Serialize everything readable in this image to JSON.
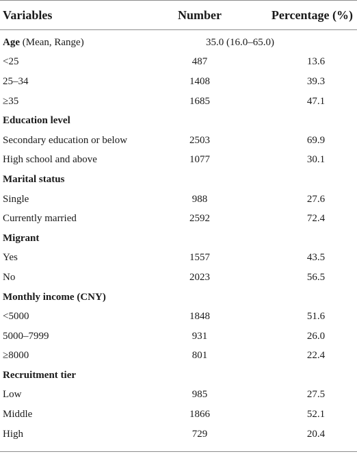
{
  "header": {
    "variables": "Variables",
    "number": "Number",
    "percentage": "Percentage (%)"
  },
  "age": {
    "label_bold": "Age",
    "label_rest": " (Mean, Range)",
    "value": "35.0 (16.0–65.0)"
  },
  "rows": [
    {
      "label": "<25",
      "number": "487",
      "percentage": "13.6"
    },
    {
      "label": "25–34",
      "number": "1408",
      "percentage": "39.3"
    },
    {
      "label": "≥35",
      "number": "1685",
      "percentage": "47.1"
    },
    {
      "label": "Education level",
      "section": true
    },
    {
      "label": "Secondary education or below",
      "number": "2503",
      "percentage": "69.9"
    },
    {
      "label": "High school and above",
      "number": "1077",
      "percentage": "30.1"
    },
    {
      "label": "Marital status",
      "section": true
    },
    {
      "label": "Single",
      "number": "988",
      "percentage": "27.6"
    },
    {
      "label": "Currently married",
      "number": "2592",
      "percentage": "72.4"
    },
    {
      "label": "Migrant",
      "section": true
    },
    {
      "label": "Yes",
      "number": "1557",
      "percentage": "43.5"
    },
    {
      "label": "No",
      "number": "2023",
      "percentage": "56.5"
    },
    {
      "label": "Monthly income (CNY)",
      "section": true
    },
    {
      "label": "<5000",
      "number": "1848",
      "percentage": "51.6"
    },
    {
      "label": "5000–7999",
      "number": "931",
      "percentage": "26.0"
    },
    {
      "label": "≥8000",
      "number": "801",
      "percentage": "22.4"
    },
    {
      "label": "Recruitment tier",
      "section": true
    },
    {
      "label": "Low",
      "number": "985",
      "percentage": "27.5"
    },
    {
      "label": "Middle",
      "number": "1866",
      "percentage": "52.1"
    },
    {
      "label": "High",
      "number": "729",
      "percentage": "20.4"
    }
  ]
}
